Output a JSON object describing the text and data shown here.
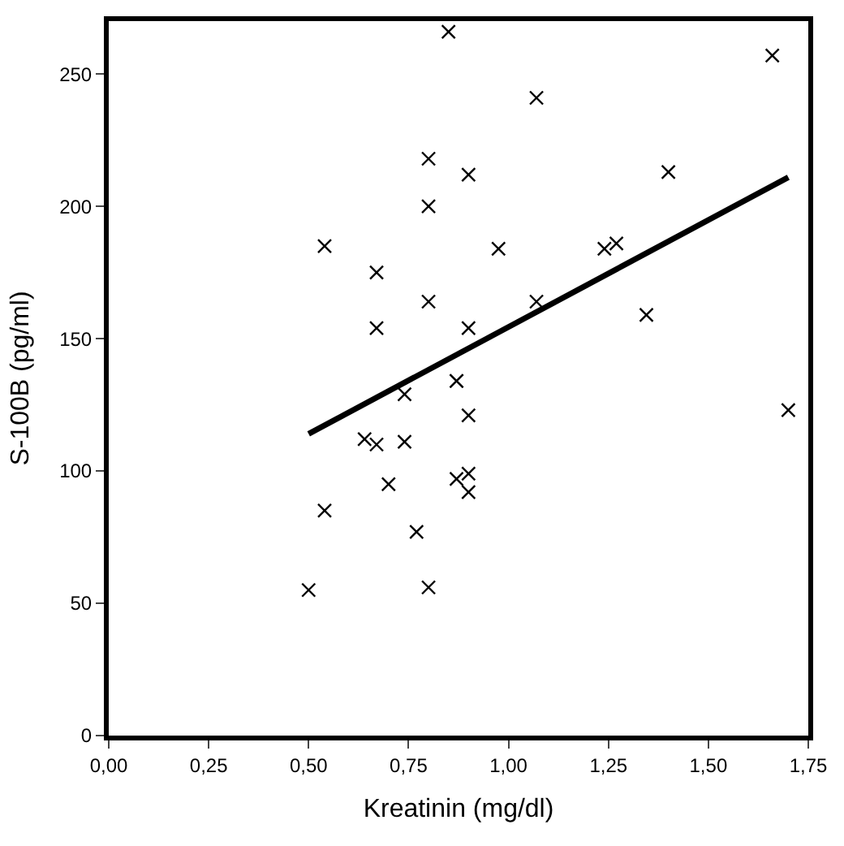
{
  "chart_data": {
    "type": "scatter",
    "xlabel": "Kreatinin (mg/dl)",
    "ylabel": "S-100B (pg/ml)",
    "xlim": [
      0,
      1.75
    ],
    "ylim": [
      0,
      270
    ],
    "xticks": [
      {
        "value": 0,
        "label": "0,00"
      },
      {
        "value": 0.25,
        "label": "0,25"
      },
      {
        "value": 0.5,
        "label": "0,50"
      },
      {
        "value": 0.75,
        "label": "0,75"
      },
      {
        "value": 1,
        "label": "1,00"
      },
      {
        "value": 1.25,
        "label": "1,25"
      },
      {
        "value": 1.5,
        "label": "1,50"
      },
      {
        "value": 1.75,
        "label": "1,75"
      }
    ],
    "yticks": [
      0,
      50,
      100,
      150,
      200,
      250
    ],
    "legend": false,
    "marker": "cross",
    "series": [
      {
        "color": "#000000",
        "x": [
          0.85,
          1.07,
          0.8,
          0.9,
          0.8,
          0.54,
          0.975,
          0.67,
          0.8,
          1.07,
          0.67,
          0.9,
          1.66,
          1.4,
          1.24,
          1.27,
          1.345,
          1.7,
          0.87,
          0.87,
          0.74,
          0.9,
          0.64,
          0.67,
          0.74,
          0.7,
          0.87,
          0.9,
          0.9,
          0.54,
          0.77,
          0.5,
          0.8
        ],
        "values": [
          266,
          241,
          218,
          212,
          200,
          185,
          184,
          175,
          164,
          164,
          154,
          154,
          257,
          213,
          184,
          186,
          159,
          123,
          134,
          134,
          129,
          121,
          112,
          110,
          111,
          95,
          97,
          99,
          92,
          85,
          77,
          55,
          56
        ]
      },
      {
        "type": "line",
        "color": "#000000",
        "marker": "none",
        "x": [
          0.5,
          1.7
        ],
        "values": [
          114,
          211
        ]
      }
    ]
  }
}
